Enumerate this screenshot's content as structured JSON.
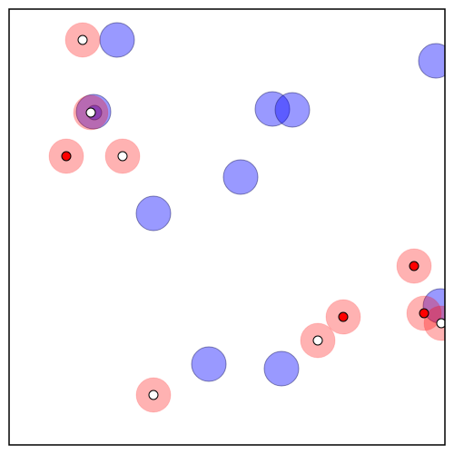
{
  "colors": {
    "background": "#ffffff",
    "frame": "#000000",
    "blue_fill": "#0000ff",
    "blue_opacity": 0.4,
    "red_fill": "#ff0000",
    "red_opacity": 0.3,
    "marker_red": "#ff0000",
    "marker_white": "#ffffff",
    "marker_stroke": "#000000"
  },
  "blue_circles": [
    {
      "id": "b1"
    },
    {
      "id": "b2"
    },
    {
      "id": "b3"
    },
    {
      "id": "b4"
    },
    {
      "id": "b5"
    },
    {
      "id": "b6"
    },
    {
      "id": "b7"
    },
    {
      "id": "b8"
    },
    {
      "id": "b9"
    },
    {
      "id": "b10"
    },
    {
      "id": "b11"
    }
  ],
  "red_circles": [
    {
      "id": "r1",
      "marker": "white"
    },
    {
      "id": "r2",
      "marker": "white"
    },
    {
      "id": "r3",
      "marker": "red"
    },
    {
      "id": "r4",
      "marker": "white"
    },
    {
      "id": "r5",
      "marker": "red"
    },
    {
      "id": "r6",
      "marker": "red"
    },
    {
      "id": "r7",
      "marker": "red"
    },
    {
      "id": "r8",
      "marker": "white"
    },
    {
      "id": "r9",
      "marker": "white"
    },
    {
      "id": "r10",
      "marker": "white"
    }
  ]
}
